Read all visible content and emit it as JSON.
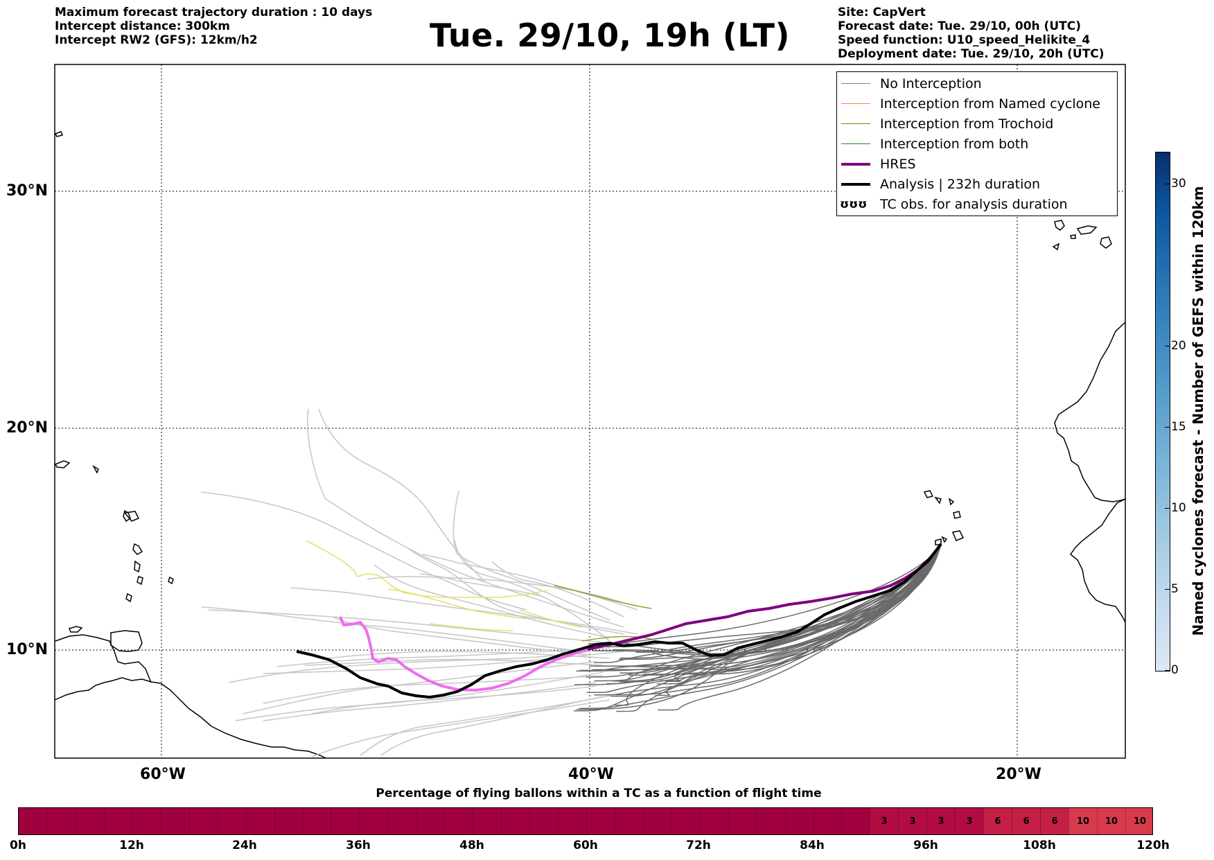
{
  "header": {
    "left_lines": [
      "Maximum forecast trajectory duration : 10 days",
      "Intercept distance: 300km",
      "Intercept RW2 (GFS):  12km/h2"
    ],
    "title": "Tue. 29/10, 19h (LT)",
    "right_lines": [
      "Site: CapVert",
      "Forecast date: Tue. 29/10, 00h (UTC)",
      "Speed function: U10_speed_Helikite_4",
      "Deployment date: Tue. 29/10, 20h (UTC)"
    ]
  },
  "map": {
    "lat_labels": [
      "30°N",
      "20°N",
      "10°N"
    ],
    "lon_labels": [
      "60°W",
      "40°W",
      "20°W"
    ],
    "grid": "dotted"
  },
  "legend": {
    "items": [
      {
        "label": "No Interception",
        "color": "#808080"
      },
      {
        "label": "Interception from Named cyclone",
        "color": "#ff7f50"
      },
      {
        "label": "Interception from Trochoid",
        "color": "#808000"
      },
      {
        "label": "Interception from both",
        "color": "#228b22"
      },
      {
        "label": "HRES",
        "color": "#800080"
      },
      {
        "label": "Analysis | 232h duration",
        "color": "#000000"
      },
      {
        "label": "TC obs. for analysis duration",
        "glyph": "ʊʊʊ"
      }
    ],
    "placement": "top-right"
  },
  "colorbar": {
    "title": "Named cyclones forecast - Number of GEFS within 120km",
    "ticks": [
      "0",
      "5",
      "10",
      "15",
      "20",
      "30"
    ],
    "range": [
      0,
      32
    ]
  },
  "bottom_bar": {
    "title": "Percentage of flying ballons within a TC as a function of flight time",
    "tick_labels": [
      "0h",
      "12h",
      "24h",
      "36h",
      "48h",
      "60h",
      "72h",
      "84h",
      "96h",
      "108h",
      "120h"
    ],
    "cell_values": [
      "3",
      "3",
      "3",
      "3",
      "6",
      "6",
      "6",
      "10",
      "10",
      "10"
    ]
  }
}
